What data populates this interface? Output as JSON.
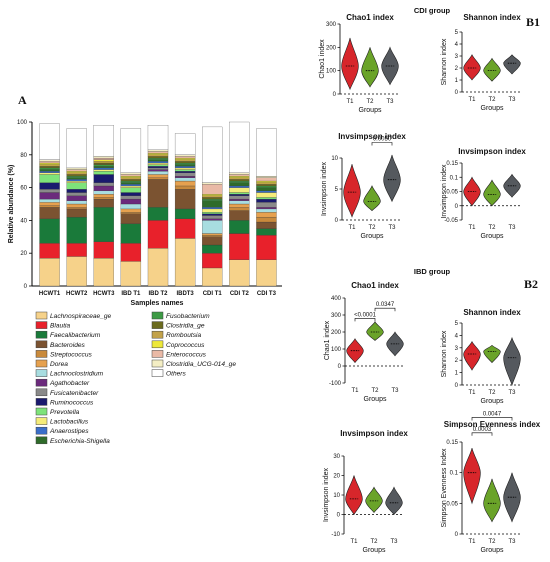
{
  "panels": {
    "a": "A",
    "b1": "B1",
    "b2": "B2"
  },
  "groups": {
    "cdi": "CDI group",
    "ibd": "IBD group"
  },
  "chart_data": [
    {
      "id": "stacked",
      "type": "bar",
      "stacked": true,
      "ylabel": "Relative abundance (%)",
      "xlabel": "Samples names",
      "ylim": [
        0,
        100
      ],
      "yticks": [
        0,
        20,
        40,
        60,
        80,
        100
      ],
      "categories": [
        "HCWT1",
        "HCWT2",
        "HCWT3",
        "IBD T1",
        "IBD T2",
        "IBDT3",
        "CDI T1",
        "CDI T2",
        "CDI T3"
      ],
      "series": [
        {
          "name": "Lachnospiraceae_ge",
          "color": "#f6d28a",
          "values": [
            17,
            18,
            17,
            15,
            23,
            29,
            11,
            16,
            16
          ]
        },
        {
          "name": "Blautia",
          "color": "#e8212b",
          "values": [
            9,
            8,
            10,
            11,
            17,
            12,
            9,
            16,
            15
          ]
        },
        {
          "name": "Faecalibacterium",
          "color": "#1a7a3a",
          "values": [
            15,
            16,
            21,
            12,
            8,
            6,
            5,
            8,
            4
          ]
        },
        {
          "name": "Bacteroides",
          "color": "#7b5331",
          "values": [
            7,
            5,
            5,
            6,
            17,
            12,
            5,
            6,
            4
          ]
        },
        {
          "name": "Streptococcus",
          "color": "#c98a3c",
          "values": [
            1,
            1,
            1,
            1,
            1,
            2,
            1,
            2,
            3
          ]
        },
        {
          "name": "Dorea",
          "color": "#e6a14f",
          "values": [
            2,
            2,
            2,
            2,
            2,
            3,
            1,
            2,
            3
          ]
        },
        {
          "name": "Lachnoclostridium",
          "color": "#a8dde0",
          "values": [
            2,
            2,
            2,
            3,
            2,
            2,
            8,
            2,
            2
          ]
        },
        {
          "name": "Agathobacter",
          "color": "#6b2a7c",
          "values": [
            4,
            3,
            3,
            3,
            1,
            1,
            1,
            1,
            1
          ]
        },
        {
          "name": "Fusicatenibacter",
          "color": "#8a8a8a",
          "values": [
            2,
            2,
            2,
            2,
            1,
            2,
            2,
            2,
            3
          ]
        },
        {
          "name": "Ruminococcus",
          "color": "#1a1a6e",
          "values": [
            4,
            2,
            5,
            2,
            1,
            1,
            1,
            1,
            2
          ]
        },
        {
          "name": "Prevotella",
          "color": "#7ee37a",
          "values": [
            5,
            4,
            2,
            3,
            1,
            1,
            1,
            1,
            1
          ]
        },
        {
          "name": "Lactobacillus",
          "color": "#f5ec7a",
          "values": [
            1,
            1,
            1,
            1,
            1,
            1,
            2,
            3,
            3
          ]
        },
        {
          "name": "Anaerostipes",
          "color": "#3a6ec9",
          "values": [
            1,
            1,
            1,
            1,
            1,
            1,
            1,
            1,
            1
          ]
        },
        {
          "name": "Escherichia-Shigella",
          "color": "#2f6b2a",
          "values": [
            1,
            1,
            1,
            1,
            1,
            1,
            4,
            2,
            2
          ]
        },
        {
          "name": "Fusobacterium",
          "color": "#3d9a44",
          "values": [
            1,
            1,
            1,
            1,
            1,
            1,
            1,
            1,
            1
          ]
        },
        {
          "name": "Clostridia_ge",
          "color": "#6b6b1e",
          "values": [
            1,
            1,
            1,
            1,
            1,
            1,
            1,
            1,
            1
          ]
        },
        {
          "name": "Romboutsia",
          "color": "#c2a24a",
          "values": [
            1,
            1,
            1,
            1,
            1,
            1,
            1,
            1,
            1
          ]
        },
        {
          "name": "Coprococcus",
          "color": "#ede83a",
          "values": [
            1,
            1,
            1,
            1,
            1,
            1,
            1,
            1,
            1
          ]
        },
        {
          "name": "Enterococcus",
          "color": "#e9b9a6",
          "values": [
            1,
            1,
            1,
            1,
            1,
            1,
            6,
            1,
            2
          ]
        },
        {
          "name": "Clostridia_UCG-014_ge",
          "color": "#f4eec4",
          "values": [
            1,
            1,
            1,
            1,
            1,
            1,
            1,
            1,
            1
          ]
        },
        {
          "name": "Others",
          "color": "#ffffff",
          "values": [
            22,
            24,
            19,
            27,
            15,
            13,
            34,
            31,
            29
          ]
        }
      ],
      "legend_placement": "bottom"
    },
    {
      "id": "cdi_chao1",
      "type": "violin",
      "title": "Chao1 index",
      "ylabel": "Chao1 index",
      "xlabel": "Groups",
      "ylim": [
        0,
        300
      ],
      "yticks": [
        0,
        100,
        200,
        300
      ],
      "categories": [
        "T1",
        "T2",
        "T3"
      ],
      "colors": [
        "#d7262b",
        "#6aa329",
        "#55595e"
      ],
      "dist": [
        [
          20,
          120,
          240
        ],
        [
          30,
          100,
          200
        ],
        [
          40,
          120,
          200
        ]
      ]
    },
    {
      "id": "cdi_shannon",
      "type": "violin",
      "title": "Shannon index",
      "ylabel": "Shannon index",
      "xlabel": "Groups",
      "ylim": [
        0,
        5
      ],
      "yticks": [
        0,
        1,
        2,
        3,
        4,
        5
      ],
      "categories": [
        "T1",
        "T2",
        "T3"
      ],
      "colors": [
        "#d7262b",
        "#6aa329",
        "#55595e"
      ],
      "dist": [
        [
          1.0,
          2.0,
          3.1
        ],
        [
          0.9,
          1.8,
          2.8
        ],
        [
          1.5,
          2.4,
          3.1
        ]
      ]
    },
    {
      "id": "cdi_invs1",
      "type": "violin",
      "title": "Invsimpson index",
      "ylabel": "Invsimpson index",
      "xlabel": "Groups",
      "ylim": [
        0,
        10
      ],
      "yticks": [
        0,
        5,
        10
      ],
      "categories": [
        "T1",
        "T2",
        "T3"
      ],
      "colors": [
        "#d7262b",
        "#6aa329",
        "#55595e"
      ],
      "dist": [
        [
          0.5,
          4.5,
          9.0
        ],
        [
          1.5,
          3.0,
          5.5
        ],
        [
          3.0,
          6.5,
          10.5
        ]
      ],
      "significance": [
        {
          "from": 1,
          "to": 2,
          "label": "0.0050",
          "at": 12.5
        }
      ]
    },
    {
      "id": "cdi_invs2",
      "type": "violin",
      "title": "Invsimpson index",
      "ylabel": "Invsimpson index",
      "xlabel": "Groups",
      "ylim": [
        -0.05,
        0.15
      ],
      "yticks": [
        -0.05,
        0.0,
        0.05,
        0.1,
        0.15
      ],
      "categories": [
        "T1",
        "T2",
        "T3"
      ],
      "colors": [
        "#d7262b",
        "#6aa329",
        "#55595e"
      ],
      "dist": [
        [
          0.0,
          0.05,
          0.1
        ],
        [
          0.0,
          0.04,
          0.09
        ],
        [
          0.03,
          0.07,
          0.11
        ]
      ]
    },
    {
      "id": "ibd_chao1",
      "type": "violin",
      "title": "Chao1 index",
      "ylabel": "Chao1 index",
      "xlabel": "Groups",
      "ylim": [
        -100,
        400
      ],
      "yticks": [
        -100,
        0,
        100,
        200,
        300,
        400
      ],
      "categories": [
        "T1",
        "T2",
        "T3"
      ],
      "colors": [
        "#d7262b",
        "#6aa329",
        "#55595e"
      ],
      "dist": [
        [
          20,
          90,
          160
        ],
        [
          150,
          200,
          260
        ],
        [
          60,
          130,
          200
        ]
      ],
      "significance": [
        {
          "from": 0,
          "to": 1,
          "label": "<0.0001",
          "at": 280
        },
        {
          "from": 1,
          "to": 2,
          "label": "0.0347",
          "at": 340
        }
      ]
    },
    {
      "id": "ibd_shannon",
      "type": "violin",
      "title": "Shannon index",
      "ylabel": "Shannon index",
      "xlabel": "Groups",
      "ylim": [
        0,
        5
      ],
      "yticks": [
        0,
        1,
        2,
        3,
        4,
        5
      ],
      "categories": [
        "T1",
        "T2",
        "T3"
      ],
      "colors": [
        "#d7262b",
        "#6aa329",
        "#55595e"
      ],
      "dist": [
        [
          1.2,
          2.5,
          3.5
        ],
        [
          1.8,
          2.7,
          3.2
        ],
        [
          0.0,
          2.2,
          3.8
        ]
      ]
    },
    {
      "id": "ibd_invs",
      "type": "violin",
      "title": "Invsimpson index",
      "ylabel": "Invsimpson index",
      "xlabel": "Groups",
      "ylim": [
        -10,
        30
      ],
      "yticks": [
        -10,
        0,
        10,
        20,
        30
      ],
      "categories": [
        "T1",
        "T2",
        "T3"
      ],
      "colors": [
        "#d7262b",
        "#6aa329",
        "#55595e"
      ],
      "dist": [
        [
          0,
          8,
          20
        ],
        [
          1,
          7,
          14
        ],
        [
          0,
          6,
          14
        ]
      ]
    },
    {
      "id": "ibd_simpson",
      "type": "violin",
      "title": "Simpson Evenness index",
      "ylabel": "Simpson Evenness Index",
      "xlabel": "Groups",
      "ylim": [
        0.0,
        0.15
      ],
      "yticks": [
        0.0,
        0.05,
        0.1,
        0.15
      ],
      "categories": [
        "T1",
        "T2",
        "T3"
      ],
      "colors": [
        "#d7262b",
        "#6aa329",
        "#55595e"
      ],
      "dist": [
        [
          0.05,
          0.1,
          0.14
        ],
        [
          0.02,
          0.05,
          0.09
        ],
        [
          0.02,
          0.06,
          0.1
        ]
      ],
      "significance": [
        {
          "from": 0,
          "to": 1,
          "label": "0.0003",
          "at": 0.165
        },
        {
          "from": 0,
          "to": 2,
          "label": "0.0047",
          "at": 0.19
        }
      ]
    }
  ]
}
